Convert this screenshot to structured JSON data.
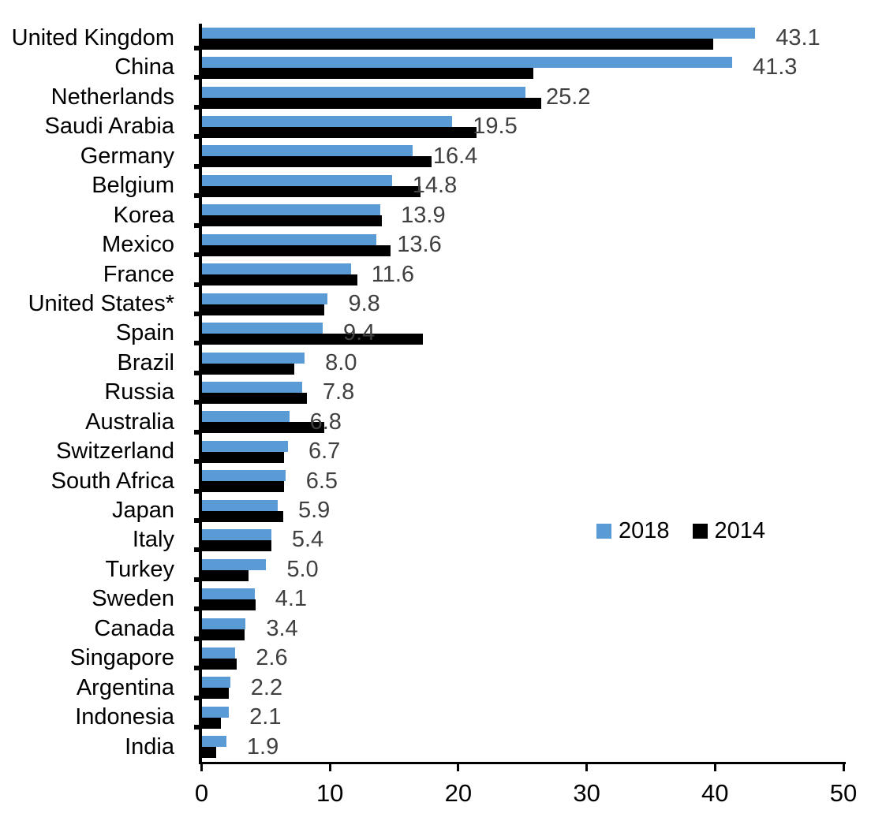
{
  "chart_data": {
    "type": "bar",
    "orientation": "horizontal",
    "title": "",
    "xlabel": "",
    "ylabel": "",
    "xlim": [
      0,
      50
    ],
    "x_ticks": [
      "0",
      "10",
      "20",
      "30",
      "40",
      "50"
    ],
    "grid": "off",
    "categories": [
      "United Kingdom",
      "China",
      "Netherlands",
      "Saudi Arabia",
      "Germany",
      "Belgium",
      "Korea",
      "Mexico",
      "France",
      "United States*",
      "Spain",
      "Brazil",
      "Russia",
      "Australia",
      "Switzerland",
      "South Africa",
      "Japan",
      "Italy",
      "Turkey",
      "Sweden",
      "Canada",
      "Singapore",
      "Argentina",
      "Indonesia",
      "India"
    ],
    "series": [
      {
        "name": "2018",
        "color": "#5B9BD5",
        "values": [
          43.1,
          41.3,
          25.2,
          19.5,
          16.4,
          14.8,
          13.9,
          13.6,
          11.6,
          9.8,
          9.4,
          8.0,
          7.8,
          6.8,
          6.7,
          6.5,
          5.9,
          5.4,
          5.0,
          4.1,
          3.4,
          2.6,
          2.2,
          2.1,
          1.9
        ]
      },
      {
        "name": "2014",
        "color": "#000000",
        "values": [
          39.8,
          25.8,
          26.4,
          21.4,
          17.9,
          17.0,
          14.0,
          14.7,
          12.1,
          9.5,
          17.2,
          7.2,
          8.2,
          9.5,
          6.4,
          6.4,
          6.3,
          5.4,
          3.6,
          4.2,
          3.3,
          2.7,
          2.1,
          1.5,
          1.1
        ]
      }
    ],
    "data_labels": {
      "series_shown": "2018",
      "labels": [
        "43.1",
        "41.3",
        "25.2",
        "19.5",
        "16.4",
        "14.8",
        "13.9",
        "13.6",
        "11.6",
        "9.8",
        "9.4",
        "8.0",
        "7.8",
        "6.8",
        "6.7",
        "6.5",
        "5.9",
        "5.4",
        "5.0",
        "4.1",
        "3.4",
        "2.6",
        "2.2",
        "2.1",
        "1.9"
      ]
    },
    "legend": {
      "position": "center-right",
      "entries": [
        {
          "label": "2018",
          "color": "#5B9BD5"
        },
        {
          "label": "2014",
          "color": "#000000"
        }
      ]
    },
    "colors": {
      "axis": "#000000",
      "category_label": "#000000",
      "tick_label": "#000000",
      "value_label": "#404040"
    }
  }
}
